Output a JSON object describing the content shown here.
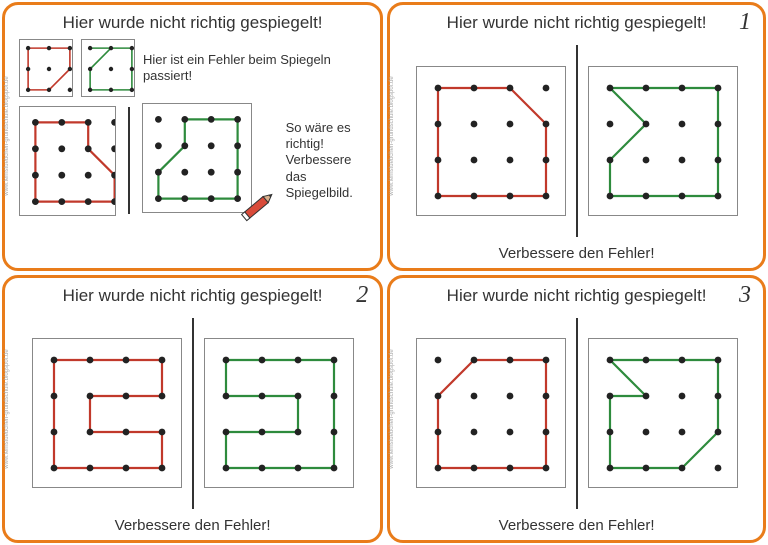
{
  "colors": {
    "card_border": "#e97c1a",
    "grid_border": "#888888",
    "dot": "#222222",
    "red": "#c1392b",
    "green": "#2e8b3d",
    "pencil_body": "#d94b3a",
    "pencil_tip": "#d9b08c",
    "pencil_lead": "#333333"
  },
  "watermark": "www.lernstuebchen-grundschule.blogspot.de",
  "card_instruction": {
    "title": "Hier wurde nicht richtig gespiegelt!",
    "hint1": "Hier ist ein Fehler beim Spiegeln passiert!",
    "hint2_l1": "So wäre es",
    "hint2_l2": "richtig!",
    "hint2_l3": "Verbessere",
    "hint2_l4": "das Spiegelbild.",
    "small_grid": 3,
    "big_grid": 4,
    "small_left_path": [
      [
        0,
        0
      ],
      [
        2,
        0
      ],
      [
        2,
        1
      ],
      [
        1,
        2
      ],
      [
        0,
        2
      ],
      [
        0,
        0
      ]
    ],
    "small_left_color": "red",
    "small_right_path": [
      [
        0,
        0
      ],
      [
        2,
        0
      ],
      [
        2,
        2
      ],
      [
        0,
        2
      ],
      [
        0,
        1
      ],
      [
        1,
        0
      ],
      [
        0,
        0
      ]
    ],
    "small_right_color": "green",
    "big_left_path": [
      [
        0,
        0
      ],
      [
        2,
        0
      ],
      [
        2,
        1
      ],
      [
        3,
        2
      ],
      [
        3,
        3
      ],
      [
        0,
        3
      ],
      [
        0,
        0
      ]
    ],
    "big_left_color": "red",
    "big_right_path": [
      [
        1,
        0
      ],
      [
        3,
        0
      ],
      [
        3,
        3
      ],
      [
        0,
        3
      ],
      [
        0,
        2
      ],
      [
        1,
        1
      ],
      [
        1,
        0
      ]
    ],
    "big_right_color": "green"
  },
  "cards": [
    {
      "number": "1",
      "title": "Hier wurde nicht richtig gespiegelt!",
      "footer": "Verbessere den Fehler!",
      "grid": 4,
      "left_path": [
        [
          0,
          0
        ],
        [
          2,
          0
        ],
        [
          3,
          1
        ],
        [
          3,
          3
        ],
        [
          0,
          3
        ],
        [
          0,
          0
        ]
      ],
      "left_color": "red",
      "right_path": [
        [
          0,
          0
        ],
        [
          3,
          0
        ],
        [
          3,
          3
        ],
        [
          0,
          3
        ],
        [
          0,
          2
        ],
        [
          1,
          1
        ],
        [
          0,
          0
        ]
      ],
      "right_color": "green"
    },
    {
      "number": "2",
      "title": "Hier wurde nicht richtig gespiegelt!",
      "footer": "Verbessere den Fehler!",
      "grid": 4,
      "left_path": [
        [
          0,
          0
        ],
        [
          3,
          0
        ],
        [
          3,
          1
        ],
        [
          1,
          1
        ],
        [
          1,
          2
        ],
        [
          3,
          2
        ],
        [
          3,
          3
        ],
        [
          0,
          3
        ],
        [
          0,
          0
        ]
      ],
      "left_color": "red",
      "right_path": [
        [
          0,
          0
        ],
        [
          3,
          0
        ],
        [
          3,
          3
        ],
        [
          0,
          3
        ],
        [
          0,
          2
        ],
        [
          2,
          2
        ],
        [
          2,
          1
        ],
        [
          0,
          1
        ],
        [
          0,
          0
        ]
      ],
      "right_color": "green"
    },
    {
      "number": "3",
      "title": "Hier wurde nicht richtig gespiegelt!",
      "footer": "Verbessere den Fehler!",
      "grid": 4,
      "left_path": [
        [
          1,
          0
        ],
        [
          3,
          0
        ],
        [
          3,
          3
        ],
        [
          0,
          3
        ],
        [
          0,
          1
        ],
        [
          1,
          0
        ]
      ],
      "left_color": "red",
      "right_path": [
        [
          0,
          0
        ],
        [
          3,
          0
        ],
        [
          3,
          2
        ],
        [
          2,
          3
        ],
        [
          0,
          3
        ],
        [
          0,
          1
        ],
        [
          1,
          1
        ],
        [
          0,
          0
        ]
      ],
      "right_color": "green"
    }
  ]
}
